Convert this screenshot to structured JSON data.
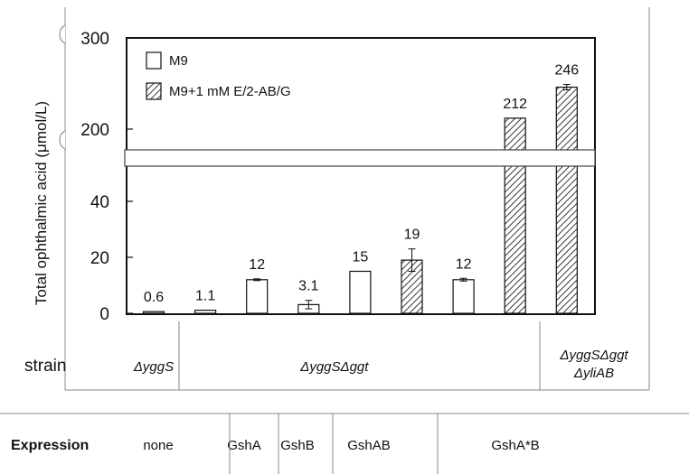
{
  "chart_data": {
    "type": "bar",
    "ylabel": "Total ophthalmic acid (μmol/L)",
    "y_axis_break": {
      "lower_ticks": [
        0,
        20,
        40
      ],
      "upper_ticks": [
        200,
        300
      ]
    },
    "legend": {
      "placement": "top-left",
      "entries": [
        {
          "name": "M9",
          "pattern": "open"
        },
        {
          "name": "M9+1 mM E/2-AB/G",
          "pattern": "hatched"
        }
      ]
    },
    "series": [
      {
        "name": "M9",
        "values": [
          0.6,
          1.1,
          12,
          3.1,
          15,
          null,
          12,
          null,
          null
        ]
      },
      {
        "name": "M9+1 mM E/2-AB/G",
        "values": [
          null,
          null,
          null,
          null,
          null,
          19,
          null,
          212,
          246
        ]
      }
    ],
    "bars": [
      {
        "label": "0.6",
        "value": 0.6,
        "series": "M9",
        "err": 0
      },
      {
        "label": "1.1",
        "value": 1.1,
        "series": "M9",
        "err": 0
      },
      {
        "label": "12",
        "value": 12,
        "series": "M9",
        "err": 0.3
      },
      {
        "label": "3.1",
        "value": 3.1,
        "series": "M9",
        "err": 1.5
      },
      {
        "label": "15",
        "value": 15,
        "series": "M9",
        "err": 0
      },
      {
        "label": "19",
        "value": 19,
        "series": "M9+1 mM E/2-AB/G",
        "err": 4
      },
      {
        "label": "12",
        "value": 12,
        "series": "M9",
        "err": 0.5
      },
      {
        "label": "212",
        "value": 212,
        "series": "M9+1 mM E/2-AB/G",
        "err": 0
      },
      {
        "label": "246",
        "value": 246,
        "series": "M9+1 mM E/2-AB/G",
        "err": 3
      }
    ],
    "strain_row": {
      "label": "strain",
      "groups": [
        {
          "text": "ΔyggS",
          "bars": [
            0,
            0
          ]
        },
        {
          "text": "ΔyggSΔggt",
          "bars": [
            1,
            6
          ]
        },
        {
          "text": "ΔyggSΔggt",
          "text2": "ΔyliAB",
          "bars": [
            7,
            8
          ]
        }
      ]
    },
    "expression_row": {
      "label": "Expression",
      "groups": [
        {
          "text": "none",
          "bars": [
            0,
            1
          ]
        },
        {
          "text": "GshA",
          "bars": [
            2,
            2
          ]
        },
        {
          "text": "GshB",
          "bars": [
            3,
            3
          ]
        },
        {
          "text": "GshAB",
          "bars": [
            4,
            5
          ]
        },
        {
          "text": "GshA*B",
          "bars": [
            6,
            8
          ]
        }
      ]
    }
  }
}
